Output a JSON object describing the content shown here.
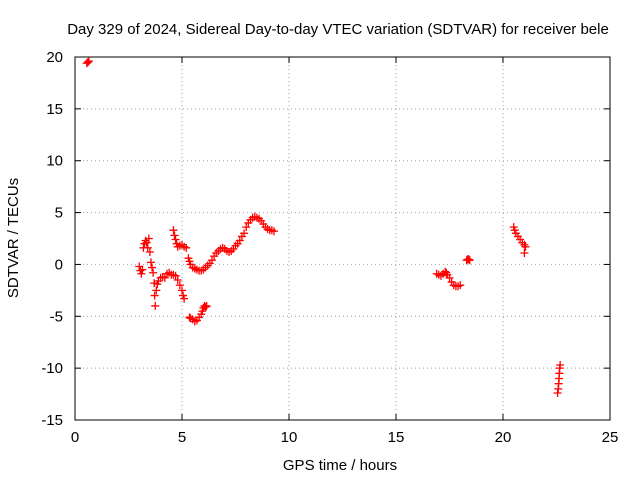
{
  "chart_data": {
    "type": "scatter",
    "title": "Day 329 of 2024, Sidereal Day-to-day VTEC variation (SDTVAR) for receiver bele",
    "xlabel": "GPS time / hours",
    "ylabel": "SDTVAR / TECUs",
    "xlim": [
      0,
      25
    ],
    "ylim": [
      -15,
      20
    ],
    "xticks": [
      0,
      5,
      10,
      15,
      20,
      25
    ],
    "yticks": [
      -15,
      -10,
      -5,
      0,
      5,
      10,
      15,
      20
    ],
    "grid": true,
    "marker": "+",
    "color": "#ff0000",
    "segments": [
      {
        "name": "outlier",
        "points": [
          [
            0.55,
            19.4
          ],
          [
            0.6,
            19.5
          ],
          [
            0.65,
            19.6
          ]
        ]
      },
      {
        "name": "arc-a",
        "points": [
          [
            3.0,
            -0.2
          ],
          [
            3.05,
            -0.6
          ],
          [
            3.1,
            -0.9
          ],
          [
            3.15,
            -0.5
          ],
          [
            3.2,
            1.6
          ],
          [
            3.25,
            2.0
          ],
          [
            3.3,
            2.3
          ],
          [
            3.35,
            2.1
          ],
          [
            3.4,
            1.6
          ],
          [
            3.45,
            2.5
          ],
          [
            3.5,
            1.2
          ],
          [
            3.55,
            0.2
          ],
          [
            3.6,
            -0.3
          ],
          [
            3.65,
            -0.8
          ],
          [
            3.7,
            -1.8
          ],
          [
            3.72,
            -3.0
          ],
          [
            3.75,
            -4.0
          ],
          [
            3.8,
            -2.5
          ],
          [
            3.85,
            -1.9
          ],
          [
            3.9,
            -1.6
          ],
          [
            4.0,
            -1.3
          ],
          [
            4.1,
            -1.2
          ],
          [
            4.2,
            -1.3
          ]
        ]
      },
      {
        "name": "arc-b",
        "points": [
          [
            4.3,
            -0.9
          ],
          [
            4.4,
            -0.8
          ],
          [
            4.5,
            -1.0
          ],
          [
            4.6,
            -1.0
          ],
          [
            4.7,
            -1.1
          ],
          [
            4.8,
            -1.5
          ],
          [
            4.9,
            -2.0
          ],
          [
            5.0,
            -2.5
          ],
          [
            5.05,
            -3.0
          ],
          [
            5.1,
            -3.3
          ]
        ]
      },
      {
        "name": "arc-c",
        "points": [
          [
            4.6,
            3.3
          ],
          [
            4.65,
            2.8
          ],
          [
            4.7,
            2.4
          ],
          [
            4.75,
            2.0
          ],
          [
            4.8,
            1.7
          ],
          [
            4.9,
            1.8
          ],
          [
            5.0,
            1.9
          ],
          [
            5.1,
            1.7
          ],
          [
            5.2,
            1.6
          ]
        ]
      },
      {
        "name": "arc-d",
        "points": [
          [
            5.3,
            0.6
          ],
          [
            5.35,
            0.3
          ],
          [
            5.4,
            0.0
          ],
          [
            5.5,
            -0.3
          ],
          [
            5.6,
            -0.4
          ],
          [
            5.7,
            -0.5
          ],
          [
            5.8,
            -0.6
          ],
          [
            5.9,
            -0.6
          ],
          [
            6.0,
            -0.5
          ],
          [
            6.1,
            -0.3
          ],
          [
            6.2,
            -0.1
          ],
          [
            6.3,
            0.1
          ],
          [
            6.4,
            0.4
          ],
          [
            6.5,
            0.8
          ],
          [
            6.6,
            1.1
          ],
          [
            6.7,
            1.3
          ],
          [
            6.8,
            1.5
          ],
          [
            6.9,
            1.6
          ],
          [
            7.0,
            1.5
          ],
          [
            7.1,
            1.3
          ],
          [
            7.2,
            1.2
          ],
          [
            7.3,
            1.3
          ],
          [
            7.4,
            1.5
          ],
          [
            7.5,
            1.8
          ],
          [
            7.6,
            2.0
          ],
          [
            7.7,
            2.3
          ],
          [
            7.8,
            2.7
          ],
          [
            7.9,
            3.0
          ],
          [
            8.0,
            3.6
          ],
          [
            8.1,
            4.0
          ],
          [
            8.2,
            4.3
          ],
          [
            8.3,
            4.5
          ],
          [
            8.4,
            4.6
          ],
          [
            8.5,
            4.5
          ],
          [
            8.6,
            4.4
          ],
          [
            8.7,
            4.2
          ],
          [
            8.8,
            3.9
          ],
          [
            8.9,
            3.6
          ],
          [
            9.0,
            3.4
          ],
          [
            9.1,
            3.3
          ],
          [
            9.2,
            3.3
          ],
          [
            9.3,
            3.2
          ]
        ]
      },
      {
        "name": "arc-e",
        "points": [
          [
            5.35,
            -5.1
          ],
          [
            5.4,
            -5.2
          ],
          [
            5.5,
            -5.3
          ],
          [
            5.6,
            -5.5
          ],
          [
            5.7,
            -5.4
          ],
          [
            5.8,
            -5.1
          ],
          [
            5.9,
            -4.8
          ],
          [
            5.95,
            -4.5
          ],
          [
            6.0,
            -4.2
          ],
          [
            6.05,
            -4.0
          ],
          [
            6.1,
            -4.1
          ],
          [
            6.15,
            -4.0
          ]
        ]
      },
      {
        "name": "arc-f",
        "points": [
          [
            16.9,
            -0.9
          ],
          [
            17.0,
            -1.0
          ],
          [
            17.1,
            -1.1
          ],
          [
            17.2,
            -0.9
          ],
          [
            17.3,
            -0.7
          ],
          [
            17.35,
            -0.8
          ],
          [
            17.4,
            -1.0
          ],
          [
            17.5,
            -1.3
          ],
          [
            17.6,
            -1.7
          ],
          [
            17.7,
            -2.0
          ],
          [
            17.8,
            -2.1
          ],
          [
            17.9,
            -2.1
          ],
          [
            18.0,
            -2.0
          ]
        ]
      },
      {
        "name": "arc-g",
        "points": [
          [
            18.3,
            0.4
          ],
          [
            18.35,
            0.5
          ],
          [
            18.4,
            0.5
          ],
          [
            18.45,
            0.4
          ]
        ]
      },
      {
        "name": "arc-h",
        "points": [
          [
            20.5,
            3.6
          ],
          [
            20.55,
            3.3
          ],
          [
            20.6,
            3.0
          ],
          [
            20.7,
            2.7
          ],
          [
            20.8,
            2.4
          ],
          [
            20.9,
            2.1
          ],
          [
            21.0,
            1.9
          ],
          [
            21.05,
            1.7
          ],
          [
            21.0,
            1.1
          ]
        ]
      },
      {
        "name": "arc-i",
        "points": [
          [
            22.55,
            -12.4
          ],
          [
            22.58,
            -12.0
          ],
          [
            22.6,
            -11.5
          ],
          [
            22.62,
            -11.0
          ],
          [
            22.63,
            -10.5
          ],
          [
            22.65,
            -10.0
          ],
          [
            22.67,
            -9.7
          ]
        ]
      }
    ]
  }
}
